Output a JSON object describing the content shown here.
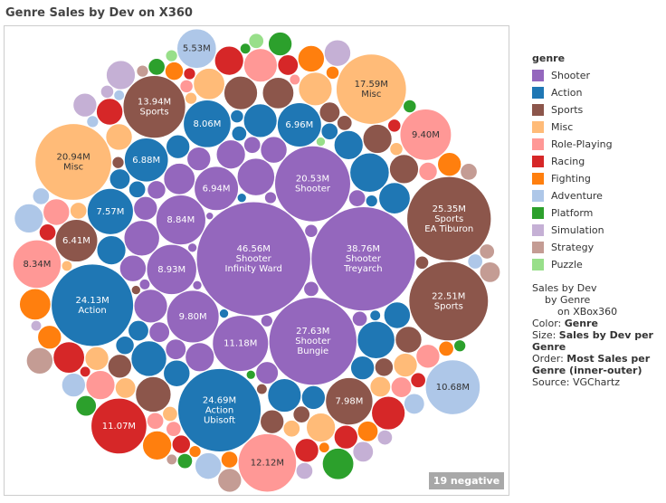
{
  "chart_data": {
    "type": "packed-bubble",
    "title": "Genre Sales by Dev on X360",
    "legend_title": "genre",
    "badge": "19 negative",
    "notes": {
      "description": [
        "Sales by Dev",
        "by Genre",
        "on XBox360"
      ],
      "fields": [
        {
          "label": "Color:",
          "value": "Genre"
        },
        {
          "label": "Size:",
          "value": "Sales by Dev per Genre"
        },
        {
          "label": "Order:",
          "value": "Most Sales per Genre (inner-outer)"
        }
      ],
      "source": "Source: VGChartz"
    },
    "series": [
      {
        "name": "Shooter",
        "color": "#9467bd",
        "values": [
          46.56,
          38.76,
          27.63,
          20.53,
          11.18,
          9.8,
          8.93,
          8.84,
          6.94,
          5,
          4.5,
          4,
          3.5,
          3,
          3,
          2.5,
          2.5,
          2,
          2,
          1.8,
          1.5,
          1.5,
          1.2,
          1,
          1,
          0.8,
          0.8,
          0.6,
          0.5,
          0.5,
          0.4,
          0.3,
          0.3,
          0.2
        ],
        "value_labels": [
          "46.56M",
          "38.76M",
          "27.63M",
          "20.53M",
          "11.18M",
          "9.80M",
          "8.93M",
          "8.84M",
          "6.94M",
          null,
          null,
          null,
          null,
          null,
          null,
          null,
          null,
          null,
          null,
          null,
          null,
          null,
          null,
          null,
          null,
          null,
          null,
          null,
          null,
          null,
          null,
          null,
          null,
          null
        ],
        "sublabels": [
          [
            "Shooter",
            "Infinity Ward"
          ],
          [
            "Shooter",
            "Treyarch"
          ],
          [
            "Shooter",
            "Bungie"
          ],
          [
            "Shooter"
          ],
          null,
          null,
          null,
          null,
          null,
          null,
          null,
          null,
          null,
          null,
          null,
          null,
          null,
          null,
          null,
          null,
          null,
          null,
          null,
          null,
          null,
          null,
          null,
          null,
          null,
          null,
          null,
          null,
          null,
          null
        ]
      },
      {
        "name": "Action",
        "color": "#1f77b4",
        "values": [
          24.69,
          24.13,
          8.06,
          7.57,
          6.96,
          6.88,
          5.5,
          5,
          4.5,
          4,
          4,
          3.5,
          3,
          3,
          2.5,
          2.5,
          2,
          2,
          2,
          1.5,
          1.5,
          1.2,
          1,
          1,
          0.8,
          0.6,
          0.5,
          0.4,
          0.3,
          0.3
        ],
        "value_labels": [
          "24.69M",
          "24.13M",
          "8.06M",
          "7.57M",
          "6.96M",
          "6.88M",
          null,
          null,
          null,
          null,
          null,
          null,
          null,
          null,
          null,
          null,
          null,
          null,
          null,
          null,
          null,
          null,
          null,
          null,
          null,
          null,
          null,
          null,
          null,
          null
        ],
        "sublabels": [
          [
            "Action",
            "Ubisoft"
          ],
          [
            "Action"
          ],
          null,
          null,
          null,
          null,
          null,
          null,
          null,
          null,
          null,
          null,
          null,
          null,
          null,
          null,
          null,
          null,
          null,
          null,
          null,
          null,
          null,
          null,
          null,
          null,
          null,
          null,
          null,
          null
        ]
      },
      {
        "name": "Sports",
        "color": "#8c564b",
        "values": [
          25.35,
          22.51,
          13.94,
          7.98,
          6.41,
          4.5,
          4,
          3.5,
          3,
          3,
          2.5,
          2,
          2,
          1.5,
          1.2,
          1,
          0.8,
          0.6,
          0.5,
          0.4,
          0.3
        ],
        "value_labels": [
          "25.35M",
          "22.51M",
          "13.94M",
          "7.98M",
          "6.41M",
          null,
          null,
          null,
          null,
          null,
          null,
          null,
          null,
          null,
          null,
          null,
          null,
          null,
          null,
          null,
          null
        ],
        "sublabels": [
          [
            "Sports",
            "EA Tiburon"
          ],
          [
            "Sports"
          ],
          [
            "Sports"
          ],
          null,
          null,
          null,
          null,
          null,
          null,
          null,
          null,
          null,
          null,
          null,
          null,
          null,
          null,
          null,
          null,
          null,
          null
        ]
      },
      {
        "name": "Misc",
        "color": "#ffbb78",
        "values": [
          20.94,
          17.59,
          4,
          3.5,
          3,
          2.5,
          2,
          2,
          1.5,
          1.5,
          1,
          1,
          0.8,
          0.6,
          0.5,
          0.4
        ],
        "value_labels": [
          "20.94M",
          "17.59M",
          null,
          null,
          null,
          null,
          null,
          null,
          null,
          null,
          null,
          null,
          null,
          null,
          null,
          null
        ],
        "sublabels": [
          [
            "Misc"
          ],
          [
            "Misc"
          ],
          null,
          null,
          null,
          null,
          null,
          null,
          null,
          null,
          null,
          null,
          null,
          null,
          null,
          null
        ]
      },
      {
        "name": "Role-Playing",
        "color": "#ff9896",
        "values": [
          12.12,
          9.4,
          8.34,
          4,
          3,
          2.5,
          2,
          1.5,
          1.2,
          1,
          0.8,
          0.6,
          0.4
        ],
        "value_labels": [
          "12.12M",
          "9.40M",
          "8.34M",
          null,
          null,
          null,
          null,
          null,
          null,
          null,
          null,
          null,
          null
        ]
      },
      {
        "name": "Racing",
        "color": "#d62728",
        "values": [
          11.07,
          4,
          3.5,
          3,
          2.5,
          2,
          2,
          1.5,
          1.2,
          1,
          0.8,
          0.6,
          0.5,
          0.4
        ],
        "value_labels": [
          "11.07M",
          null,
          null,
          null,
          null,
          null,
          null,
          null,
          null,
          null,
          null,
          null,
          null,
          null
        ]
      },
      {
        "name": "Fighting",
        "color": "#ff7f0e",
        "values": [
          3.5,
          3,
          2.5,
          2,
          2,
          1.5,
          1.2,
          1,
          0.8,
          0.6,
          0.5,
          0.4
        ]
      },
      {
        "name": "Adventure",
        "color": "#aec7e8",
        "values": [
          10.68,
          5.53,
          3,
          2.5,
          2,
          1.5,
          1,
          0.8,
          0.5,
          0.4
        ],
        "value_labels": [
          "10.68M",
          "5.53M",
          null,
          null,
          null,
          null,
          null,
          null,
          null,
          null
        ]
      },
      {
        "name": "Platform",
        "color": "#2ca02c",
        "values": [
          3.5,
          2,
          1.5,
          1,
          0.8,
          0.6,
          0.5,
          0.4,
          0.3
        ]
      },
      {
        "name": "Simulation",
        "color": "#c5b0d5",
        "values": [
          3,
          2.5,
          2,
          1.5,
          1,
          0.8,
          0.6,
          0.4
        ]
      },
      {
        "name": "Strategy",
        "color": "#c49c94",
        "values": [
          2.5,
          2,
          1.5,
          1,
          0.8,
          0.5,
          0.4
        ]
      },
      {
        "name": "Puzzle",
        "color": "#98df8a",
        "values": [
          0.8,
          0.5,
          0.3
        ]
      }
    ]
  }
}
